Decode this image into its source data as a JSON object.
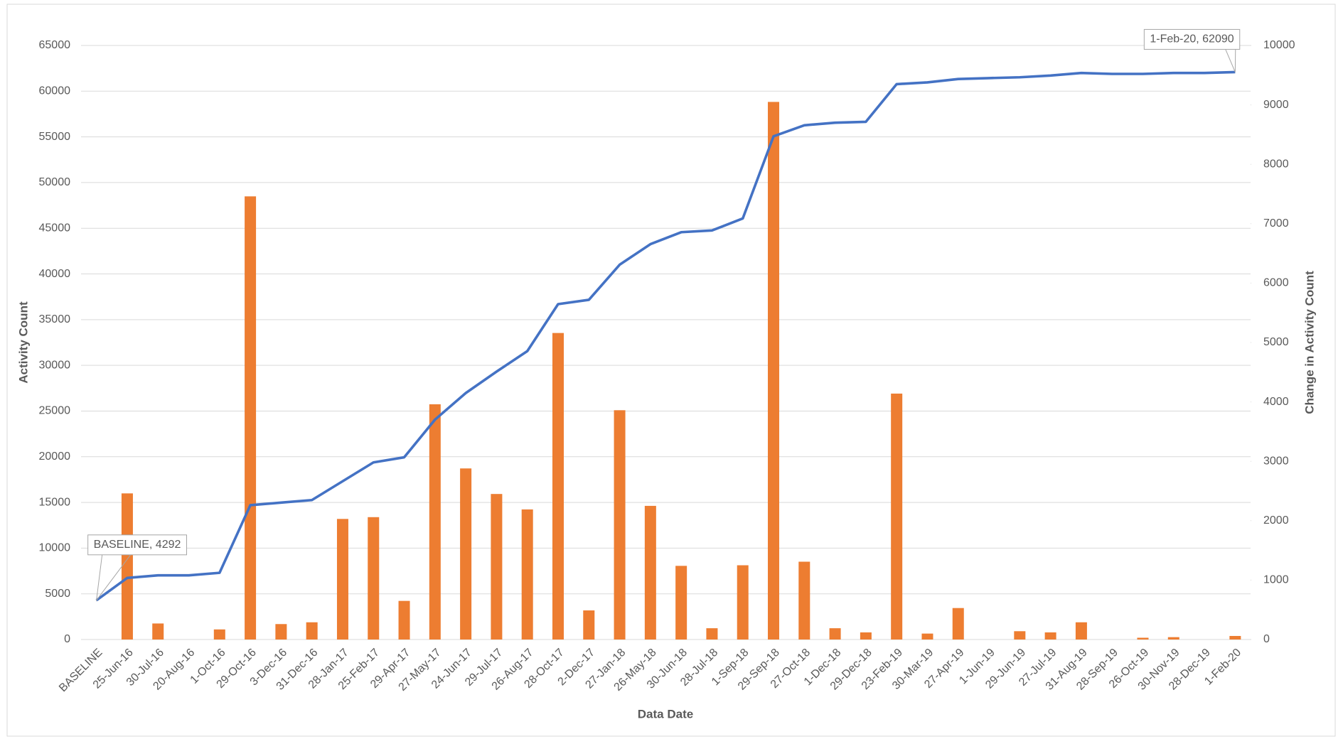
{
  "chart_data": {
    "type": "bar_line",
    "x_label": "Data Date",
    "y_label": "Activity Count",
    "y2_label": "Change in Activity Count",
    "categories": [
      "BASELINE",
      "25-Jun-16",
      "30-Jul-16",
      "20-Aug-16",
      "1-Oct-16",
      "29-Oct-16",
      "3-Dec-16",
      "31-Dec-16",
      "28-Jan-17",
      "25-Feb-17",
      "29-Apr-17",
      "27-May-17",
      "24-Jun-17",
      "29-Jul-17",
      "26-Aug-17",
      "28-Oct-17",
      "2-Dec-17",
      "27-Jan-18",
      "26-May-18",
      "30-Jun-18",
      "28-Jul-18",
      "1-Sep-18",
      "29-Sep-18",
      "27-Oct-18",
      "1-Dec-18",
      "29-Dec-18",
      "23-Feb-19",
      "30-Mar-19",
      "27-Apr-19",
      "1-Jun-19",
      "29-Jun-19",
      "27-Jul-19",
      "31-Aug-19",
      "28-Sep-19",
      "26-Oct-19",
      "30-Nov-19",
      "28-Dec-19",
      "1-Feb-20"
    ],
    "series": [
      {
        "type": "bar",
        "axis": "y2",
        "color": "#ed7d31",
        "values": [
          null,
          2460,
          270,
          0,
          170,
          7460,
          260,
          290,
          2030,
          2060,
          650,
          3960,
          2880,
          2450,
          2190,
          5160,
          490,
          3860,
          2250,
          1240,
          190,
          1250,
          9050,
          1310,
          190,
          120,
          4140,
          100,
          530,
          0,
          140,
          120,
          290,
          0,
          30,
          40,
          0,
          60
        ]
      },
      {
        "type": "line",
        "axis": "y",
        "color": "#4472c4",
        "values": [
          4292,
          6740,
          7020,
          7020,
          7300,
          14700,
          14980,
          15260,
          17320,
          19380,
          19940,
          24060,
          26970,
          29310,
          31560,
          36700,
          37170,
          41010,
          43260,
          44570,
          44760,
          46070,
          55060,
          56270,
          56550,
          56650,
          60770,
          60960,
          61330,
          61430,
          61520,
          61710,
          61990,
          61890,
          61890,
          61990,
          61990,
          62090
        ],
        "value_labels": [
          "BASELINE, 4292",
          null,
          null,
          null,
          null,
          null,
          null,
          null,
          null,
          null,
          null,
          null,
          null,
          null,
          null,
          null,
          null,
          null,
          null,
          null,
          null,
          null,
          null,
          null,
          null,
          null,
          null,
          null,
          null,
          null,
          null,
          null,
          null,
          null,
          null,
          null,
          null,
          "1-Feb-20, 62090"
        ]
      }
    ],
    "ylim": [
      0,
      65000
    ],
    "yticks": [
      0,
      5000,
      10000,
      15000,
      20000,
      25000,
      30000,
      35000,
      40000,
      45000,
      50000,
      55000,
      60000,
      65000
    ],
    "y2lim": [
      0,
      10000
    ],
    "y2ticks": [
      0,
      1000,
      2000,
      3000,
      4000,
      5000,
      6000,
      7000,
      8000,
      9000,
      10000
    ],
    "grid": true
  }
}
